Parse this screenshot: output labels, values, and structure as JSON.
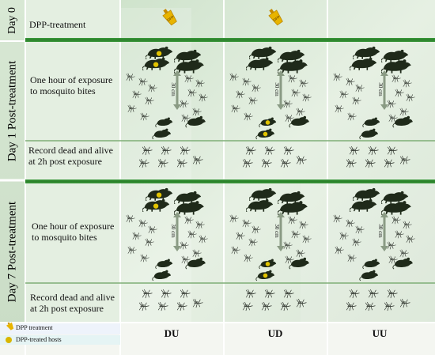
{
  "days": {
    "day0": "Day 0",
    "day1": "Day 1 Post-treatment",
    "day7": "Day 7 Post-treatment"
  },
  "rows": {
    "treatment": "DPP-treatment",
    "exposure_day1_line1": "One hour of exposure",
    "exposure_day1_line2": "to mosquito bites",
    "record_day1_line1": "Record dead and alive",
    "record_day1_line2": "at 2h post exposure",
    "exposure_day7_line1": "One hour of exposure",
    "exposure_day7_line2": "to mosquito bites",
    "record_day7_line1": "Record dead and alive",
    "record_day7_line2": "at 2h post exposure"
  },
  "distance_label": "30 cm",
  "bottle_label": "DPP",
  "columns": [
    "DU",
    "UD",
    "UU"
  ],
  "legend": {
    "treatment": "DPP treatment",
    "hosts": "DPP-treated hosts"
  },
  "colors": {
    "header_band": "#2f8a2f",
    "animal": "#1f2a1a",
    "dpp_spot": "#e2c400",
    "arrow": "#8a9b84",
    "mosquito": "#2a2f28"
  }
}
